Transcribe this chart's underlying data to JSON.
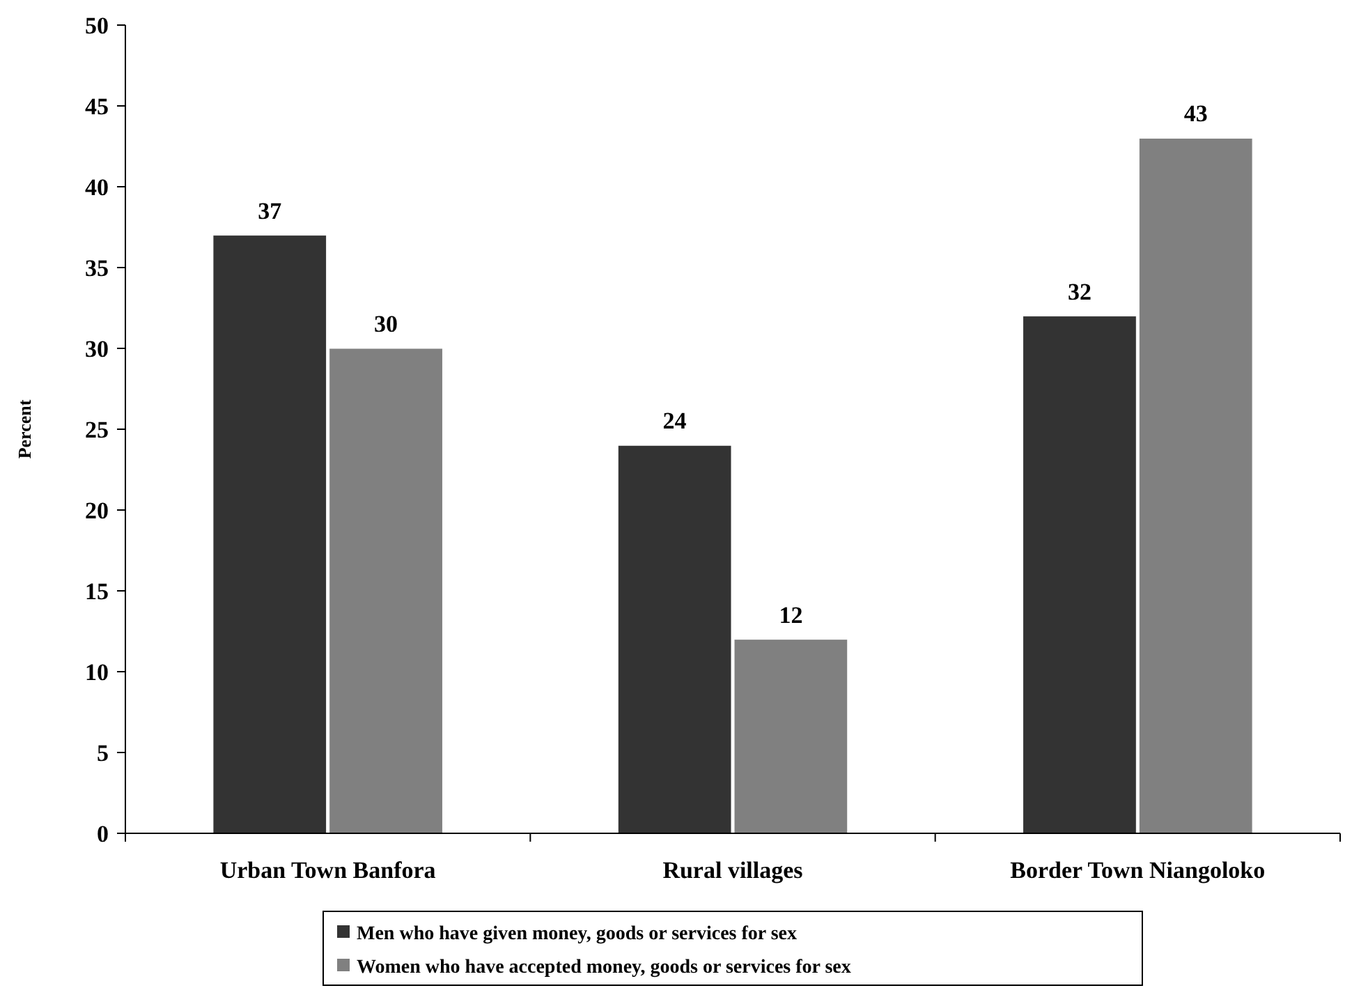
{
  "chart_data": {
    "type": "bar",
    "ylabel": "Percent",
    "categories": [
      "Urban Town Banfora",
      "Rural villages",
      "Border Town Niangoloko"
    ],
    "series": [
      {
        "name": "Men who have given money, goods or services for sex",
        "color": "#333333",
        "values": [
          37,
          24,
          32
        ]
      },
      {
        "name": "Women who have accepted money, goods or services for sex",
        "color": "#808080",
        "values": [
          30,
          12,
          43
        ]
      }
    ],
    "ylim": [
      0,
      50
    ],
    "yticks": [
      0,
      5,
      10,
      15,
      20,
      25,
      30,
      35,
      40,
      45,
      50
    ],
    "data_labels": true,
    "grid": false,
    "legend": "bottom"
  }
}
